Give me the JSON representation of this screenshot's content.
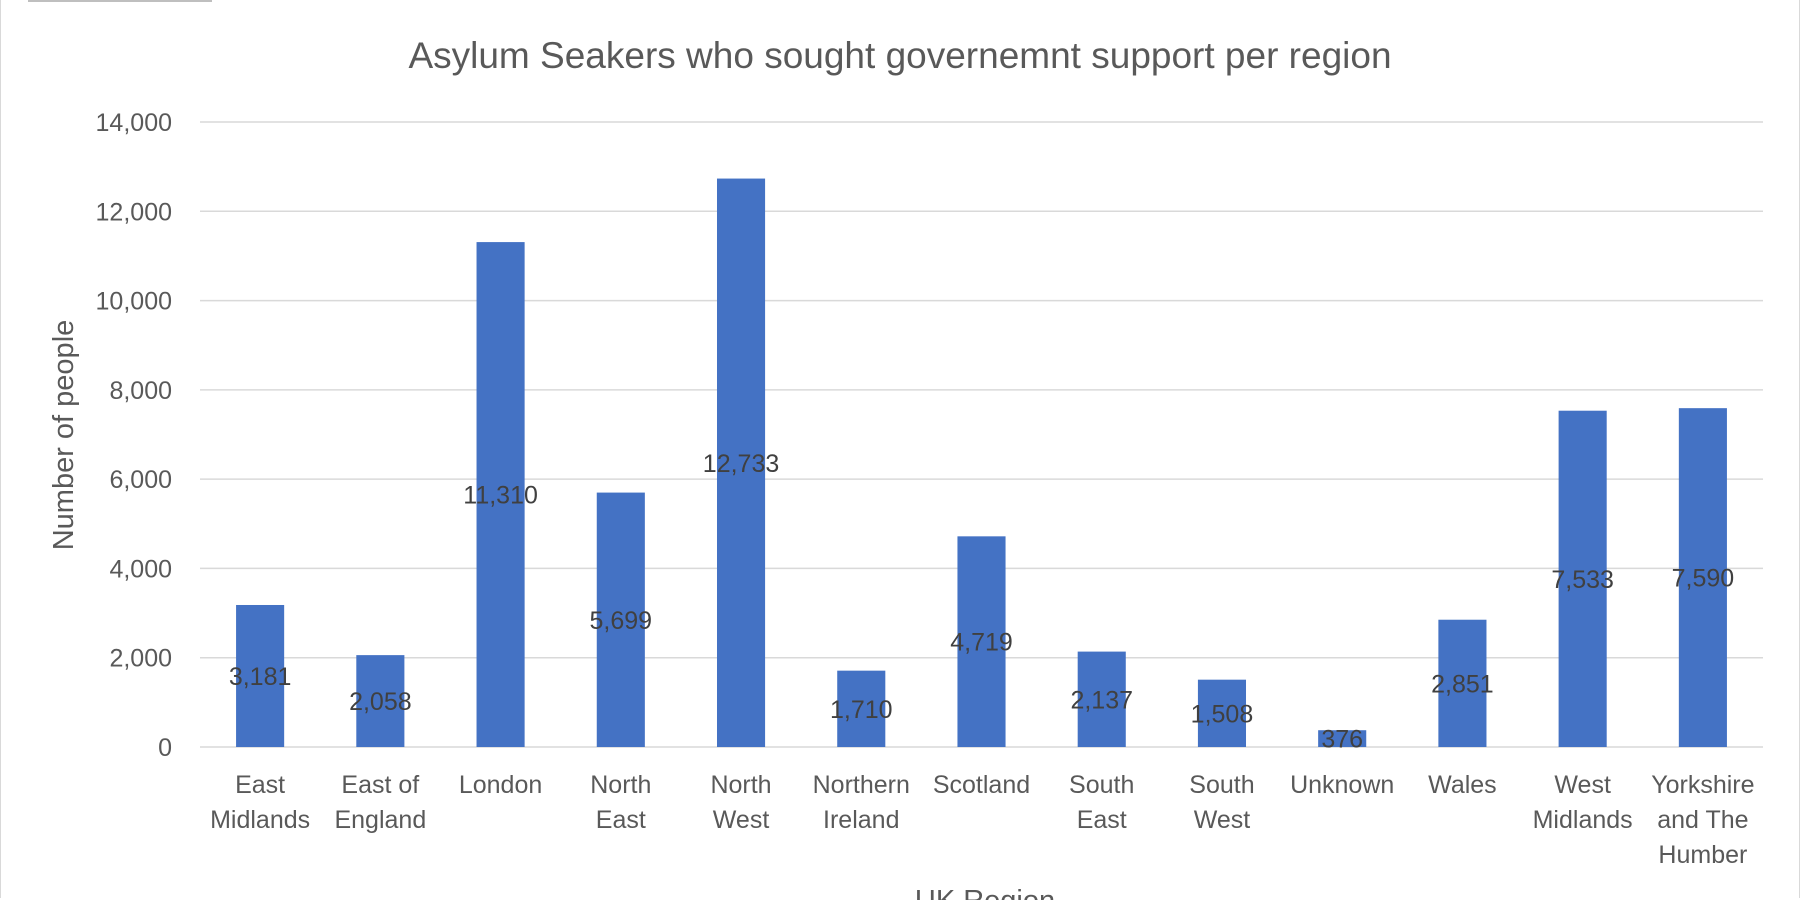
{
  "chart_data": {
    "type": "bar",
    "title": "Asylum Seakers who sought governemnt support per region",
    "xlabel": "UK Region",
    "ylabel": "Number of people",
    "ylim": [
      0,
      14000
    ],
    "yticks": [
      0,
      2000,
      4000,
      6000,
      8000,
      10000,
      12000,
      14000
    ],
    "ytick_labels": [
      "0",
      "2,000",
      "4,000",
      "6,000",
      "8,000",
      "10,000",
      "12,000",
      "14,000"
    ],
    "grid": true,
    "legend": "none",
    "categories": [
      [
        "East",
        "Midlands"
      ],
      [
        "East of",
        "England"
      ],
      [
        "London"
      ],
      [
        "North",
        "East"
      ],
      [
        "North",
        "West"
      ],
      [
        "Northern",
        "Ireland"
      ],
      [
        "Scotland"
      ],
      [
        "South",
        "East"
      ],
      [
        "South",
        "West"
      ],
      [
        "Unknown"
      ],
      [
        "Wales"
      ],
      [
        "West",
        "Midlands"
      ],
      [
        "Yorkshire",
        "and The",
        "Humber"
      ]
    ],
    "values": [
      3181,
      2058,
      11310,
      5699,
      12733,
      1710,
      4719,
      2137,
      1508,
      376,
      2851,
      7533,
      7590
    ],
    "data_labels": [
      "3,181",
      "2,058",
      "11,310",
      "5,699",
      "12,733",
      "1,710",
      "4,719",
      "2,137",
      "1,508",
      "376",
      "2,851",
      "7,533",
      "7,590"
    ],
    "colors": {
      "bar": "#4472C4",
      "grid": "#D9D9D9",
      "text": "#595959"
    }
  }
}
